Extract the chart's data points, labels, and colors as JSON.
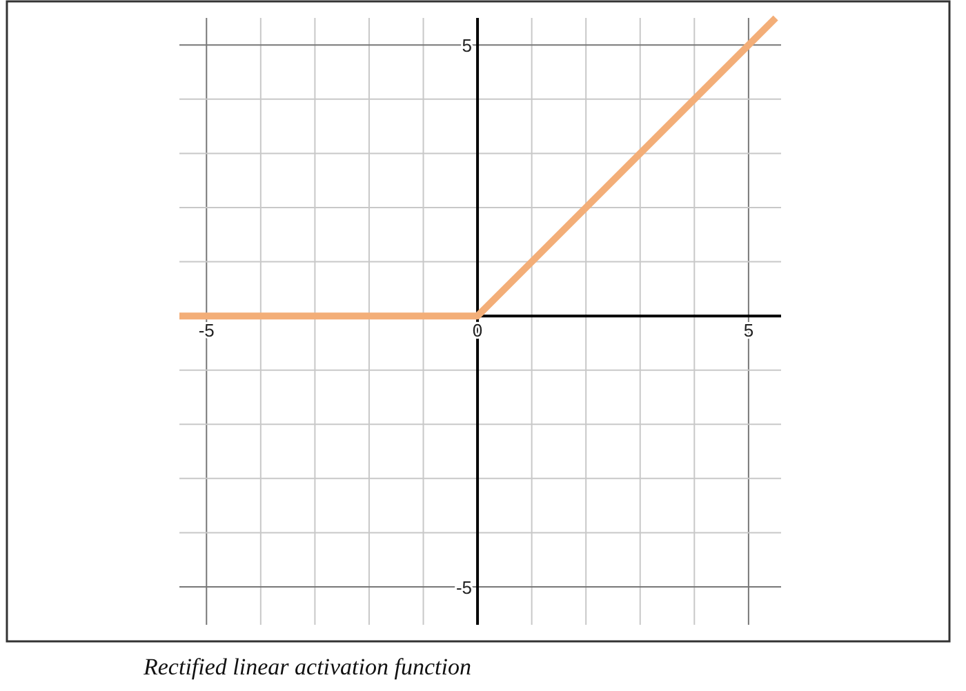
{
  "chart_data": {
    "type": "line",
    "x": [
      -5.5,
      0,
      5.5
    ],
    "series": [
      {
        "color": "#f3ae78",
        "values": [
          0,
          0,
          5.5
        ]
      }
    ],
    "xlim": [
      -5.5,
      5.6
    ],
    "ylim": [
      -5.7,
      5.5
    ],
    "xticks": [
      -5,
      {
        "value": -4,
        "label": null
      },
      {
        "value": -3,
        "label": null
      },
      {
        "value": -2,
        "label": null
      },
      {
        "value": -1,
        "label": null
      },
      0,
      {
        "value": 1,
        "label": null
      },
      {
        "value": 2,
        "label": null
      },
      {
        "value": 3,
        "label": null
      },
      {
        "value": 4,
        "label": null
      },
      5
    ],
    "yticks": [
      -5,
      {
        "value": -4,
        "label": null
      },
      {
        "value": -3,
        "label": null
      },
      {
        "value": -2,
        "label": null
      },
      {
        "value": -1,
        "label": null
      },
      {
        "value": 1,
        "label": null
      },
      {
        "value": 2,
        "label": null
      },
      {
        "value": 3,
        "label": null
      },
      {
        "value": 4,
        "label": null
      },
      5
    ],
    "grid": true,
    "marker": "none",
    "line_style": "solid",
    "annotations": [
      "Rectified linear activation function"
    ]
  }
}
